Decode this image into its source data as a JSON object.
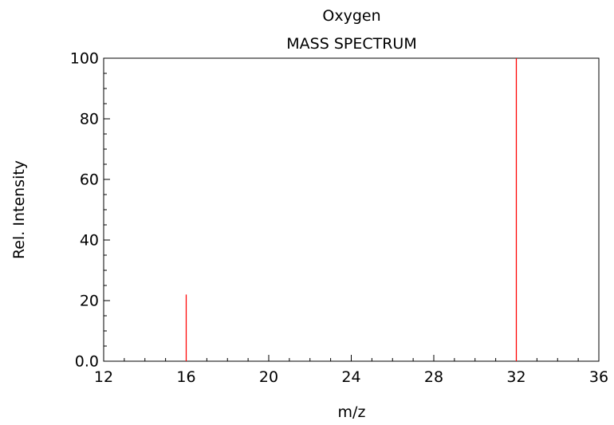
{
  "chart_data": {
    "type": "bar",
    "title": "Oxygen",
    "subtitle": "MASS SPECTRUM",
    "xlabel": "m/z",
    "ylabel": "Rel. Intensity",
    "xlim": [
      12,
      36
    ],
    "ylim": [
      0,
      100
    ],
    "x_ticks": [
      "12",
      "16",
      "20",
      "24",
      "28",
      "32",
      "36"
    ],
    "x_tick_values": [
      12,
      16,
      20,
      24,
      28,
      32,
      36
    ],
    "y_ticks": [
      "0.0",
      "20",
      "40",
      "60",
      "80",
      "100"
    ],
    "y_tick_values": [
      0,
      20,
      40,
      60,
      80,
      100
    ],
    "peaks": [
      {
        "x": 16,
        "y": 22
      },
      {
        "x": 32,
        "y": 100
      }
    ],
    "grid": false,
    "legend": "none",
    "colors": {
      "peak": "#ff0000",
      "axis": "#000000"
    }
  }
}
